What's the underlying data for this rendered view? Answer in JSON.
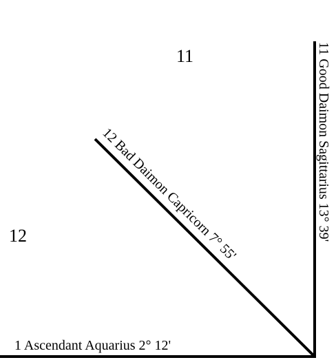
{
  "diagram": {
    "line_color": "#000000",
    "text_color": "#000000",
    "background": "#ffffff",
    "house_numbers": {
      "house_11": "11",
      "house_12": "12"
    },
    "cusps": {
      "ascendant": "1 Ascendant Aquarius 2° 12'",
      "bad_daimon": "12 Bad Daimon Capricorn 7° 55'",
      "good_daimon": "11 Good Daimon Sagittarius 13° 39'"
    }
  }
}
